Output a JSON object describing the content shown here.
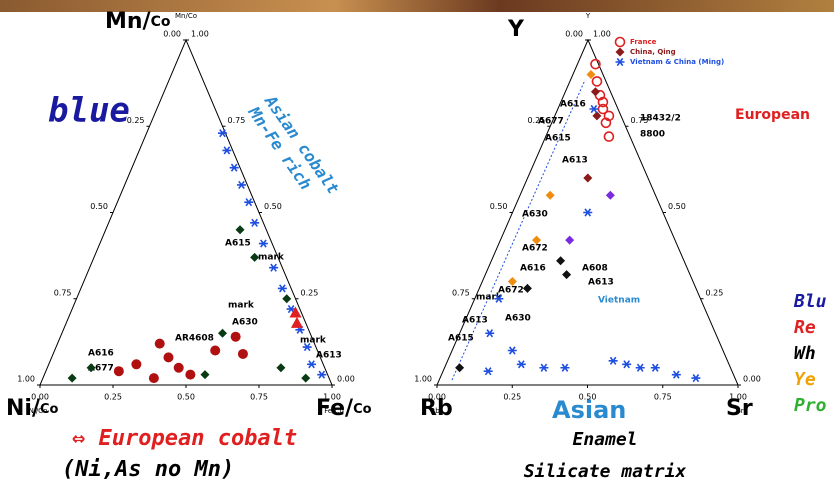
{
  "slide": {
    "left_heading": "Mn/Co",
    "left_top_corner": "Mn/",
    "left_top_corner_sub": "Co",
    "blue": "blue",
    "asian_cobalt_1": "Asian cobalt",
    "asian_cobalt_2": "Mn-Fe rich",
    "ni": "Ni/",
    "ni_sub": "Co",
    "fe": "Fe/",
    "fe_sub": "Co",
    "european_cobalt": "⇔ European cobalt",
    "european_cobalt_note": "(Ni,As no Mn)",
    "y_corner": "Y",
    "rb_corner": "Rb",
    "asian": "Asian",
    "sr_corner": "Sr",
    "enamel": "Enamel",
    "silicate": "Silicate matrix",
    "european": "European",
    "side_list": [
      "Blu",
      "Re",
      "Wh",
      "Ye",
      "Pro"
    ]
  },
  "chart_data": [
    {
      "type": "ternary",
      "top_label": "Mn/Co",
      "left_label": "Ni/Co",
      "right_label": "Fe/Co",
      "ticks": [
        {
          "value": 0,
          "label": "0.00"
        },
        {
          "value": 0.25,
          "label": "0.25"
        },
        {
          "value": 0.5,
          "label": "0.50"
        },
        {
          "value": 0.75,
          "label": "0.75"
        },
        {
          "value": 1,
          "label": "1.00"
        }
      ],
      "annotations": [
        "A615",
        "mark",
        "mark",
        "A630",
        "AR4608",
        "mark",
        "A613",
        "A616",
        "A677"
      ],
      "series": [
        {
          "color": "#1f4fe0",
          "marker": "star",
          "values": [
            [
              0.73,
              0.26
            ],
            [
              0.68,
              0.3
            ],
            [
              0.63,
              0.35
            ],
            [
              0.58,
              0.4
            ],
            [
              0.53,
              0.45
            ],
            [
              0.47,
              0.5
            ],
            [
              0.41,
              0.56
            ],
            [
              0.34,
              0.63
            ],
            [
              0.28,
              0.69
            ],
            [
              0.22,
              0.75
            ],
            [
              0.16,
              0.81
            ],
            [
              0.11,
              0.86
            ],
            [
              0.06,
              0.9
            ],
            [
              0.03,
              0.95
            ]
          ]
        },
        {
          "color": "#b01010",
          "marker": "circle",
          "values": [
            [
              0.08,
              0.4
            ],
            [
              0.12,
              0.35
            ],
            [
              0.05,
              0.45
            ],
            [
              0.03,
              0.5
            ],
            [
              0.1,
              0.55
            ],
            [
              0.06,
              0.3
            ],
            [
              0.04,
              0.25
            ],
            [
              0.14,
              0.6
            ],
            [
              0.09,
              0.65
            ],
            [
              0.02,
              0.38
            ]
          ]
        },
        {
          "color": "#e02020",
          "marker": "triangle",
          "values": [
            [
              0.18,
              0.79
            ],
            [
              0.21,
              0.77
            ]
          ]
        },
        {
          "color": "#0a3a14",
          "marker": "diamond",
          "values": [
            [
              0.02,
              0.1
            ],
            [
              0.05,
              0.15
            ],
            [
              0.03,
              0.55
            ],
            [
              0.15,
              0.55
            ],
            [
              0.45,
              0.46
            ],
            [
              0.37,
              0.55
            ],
            [
              0.25,
              0.72
            ],
            [
              0.05,
              0.8
            ],
            [
              0.02,
              0.9
            ]
          ]
        }
      ]
    },
    {
      "type": "ternary",
      "top_label": "Y",
      "left_label": "Rb",
      "right_label": "Sr",
      "ticks": [
        {
          "value": 0,
          "label": "0.00"
        },
        {
          "value": 0.25,
          "label": "0.25"
        },
        {
          "value": 0.5,
          "label": "0.50"
        },
        {
          "value": 0.75,
          "label": "0.75"
        },
        {
          "value": 1,
          "label": "1.00"
        }
      ],
      "annotations": [
        "A616",
        "A677",
        "A615",
        "A613",
        "A630",
        "A672",
        "A616",
        "A608",
        "A672",
        "A613",
        "mark",
        "A630",
        "A613",
        "A615",
        "18432/2",
        "8800",
        "Vietnam"
      ],
      "series": [
        {
          "name": "France",
          "color": "#e02020",
          "marker": "ring",
          "values": [
            [
              0.93,
              0.06
            ],
            [
              0.88,
              0.09
            ],
            [
              0.84,
              0.12
            ],
            [
              0.8,
              0.15
            ],
            [
              0.76,
              0.18
            ],
            [
              0.72,
              0.21
            ],
            [
              0.78,
              0.18
            ],
            [
              0.82,
              0.14
            ]
          ]
        },
        {
          "name": "China, Qing",
          "color": "#8b1a1a",
          "marker": "diamond",
          "values": [
            [
              0.85,
              0.1
            ],
            [
              0.6,
              0.2
            ],
            [
              0.78,
              0.14
            ]
          ]
        },
        {
          "color": "#f08c10",
          "marker": "diamond",
          "values": [
            [
              0.9,
              0.06
            ],
            [
              0.55,
              0.1
            ],
            [
              0.42,
              0.12
            ],
            [
              0.3,
              0.1
            ]
          ]
        },
        {
          "color": "#7a2be0",
          "marker": "diamond",
          "values": [
            [
              0.55,
              0.3
            ],
            [
              0.42,
              0.23
            ]
          ]
        },
        {
          "color": "#111111",
          "marker": "diamond",
          "values": [
            [
              0.36,
              0.23
            ],
            [
              0.32,
              0.27
            ],
            [
              0.28,
              0.16
            ],
            [
              0.05,
              0.05
            ]
          ]
        },
        {
          "name": "Vietnam & China (Ming)",
          "color": "#1f4fe0",
          "marker": "star",
          "values": [
            [
              0.8,
              0.12
            ],
            [
              0.5,
              0.25
            ],
            [
              0.25,
              0.08
            ],
            [
              0.15,
              0.1
            ],
            [
              0.1,
              0.2
            ],
            [
              0.06,
              0.25
            ],
            [
              0.05,
              0.33
            ],
            [
              0.05,
              0.4
            ],
            [
              0.07,
              0.55
            ],
            [
              0.06,
              0.6
            ],
            [
              0.05,
              0.65
            ],
            [
              0.05,
              0.7
            ],
            [
              0.03,
              0.78
            ],
            [
              0.02,
              0.85
            ],
            [
              0.04,
              0.15
            ]
          ]
        }
      ]
    }
  ]
}
